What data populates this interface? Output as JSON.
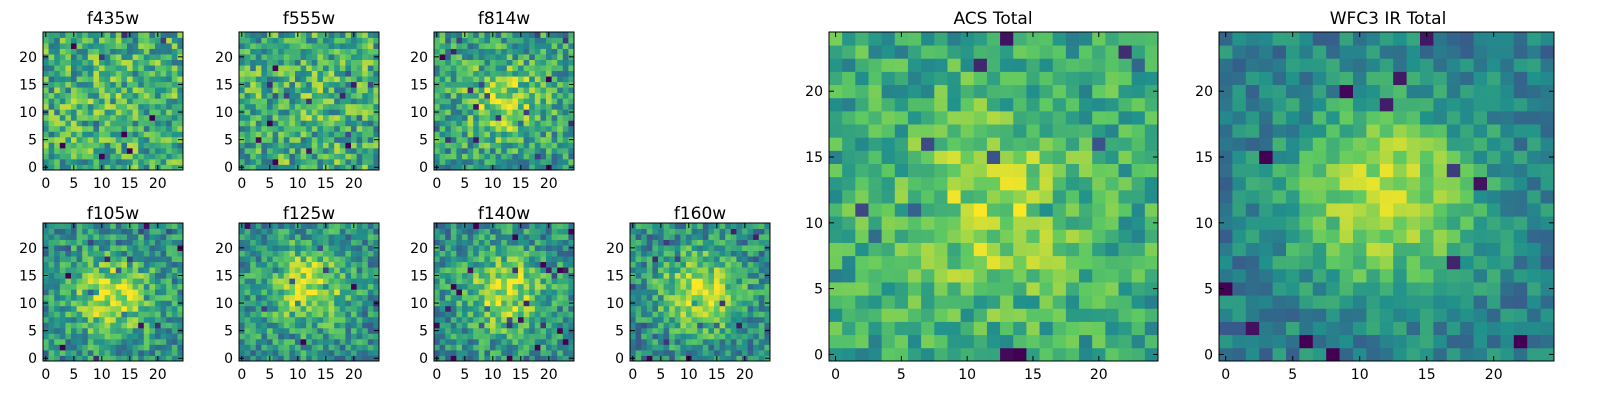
{
  "figure": {
    "colormap": "viridis",
    "colormap_stops": [
      "#440154",
      "#3b528b",
      "#21918c",
      "#5ec962",
      "#fde725"
    ],
    "background": "#ffffff"
  },
  "chart_data": [
    {
      "type": "heatmap",
      "title": "f435w",
      "grid_size": 25,
      "xticks": [
        "0",
        "5",
        "10",
        "15",
        "20"
      ],
      "yticks": [
        "0",
        "5",
        "10",
        "15",
        "20"
      ],
      "xlim": [
        0,
        24
      ],
      "ylim": [
        0,
        24
      ],
      "peak_center": [
        12,
        12
      ],
      "peak_strength": 0.05,
      "noise": 0.55,
      "base": 0.62,
      "seed": 11,
      "grid": false
    },
    {
      "type": "heatmap",
      "title": "f555w",
      "grid_size": 25,
      "xticks": [
        "0",
        "5",
        "10",
        "15",
        "20"
      ],
      "yticks": [
        "0",
        "5",
        "10",
        "15",
        "20"
      ],
      "xlim": [
        0,
        24
      ],
      "ylim": [
        0,
        24
      ],
      "peak_center": [
        12,
        12
      ],
      "peak_strength": 0.05,
      "noise": 0.55,
      "base": 0.62,
      "seed": 23,
      "grid": false
    },
    {
      "type": "heatmap",
      "title": "f814w",
      "grid_size": 25,
      "xticks": [
        "0",
        "5",
        "10",
        "15",
        "20"
      ],
      "yticks": [
        "0",
        "5",
        "10",
        "15",
        "20"
      ],
      "xlim": [
        0,
        24
      ],
      "ylim": [
        0,
        24
      ],
      "peak_center": [
        12,
        12
      ],
      "peak_strength": 0.3,
      "noise": 0.5,
      "base": 0.55,
      "seed": 37,
      "grid": false
    },
    {
      "type": "heatmap",
      "title": "f105w",
      "grid_size": 25,
      "xticks": [
        "0",
        "5",
        "10",
        "15",
        "20"
      ],
      "yticks": [
        "0",
        "5",
        "10",
        "15",
        "20"
      ],
      "xlim": [
        0,
        24
      ],
      "ylim": [
        0,
        24
      ],
      "peak_center": [
        12,
        11
      ],
      "peak_strength": 0.4,
      "noise": 0.45,
      "base": 0.5,
      "seed": 41,
      "grid": false
    },
    {
      "type": "heatmap",
      "title": "f125w",
      "grid_size": 25,
      "xticks": [
        "0",
        "5",
        "10",
        "15",
        "20"
      ],
      "yticks": [
        "0",
        "5",
        "10",
        "15",
        "20"
      ],
      "xlim": [
        0,
        24
      ],
      "ylim": [
        0,
        24
      ],
      "peak_center": [
        12,
        13
      ],
      "peak_strength": 0.4,
      "noise": 0.45,
      "base": 0.5,
      "seed": 53,
      "grid": false
    },
    {
      "type": "heatmap",
      "title": "f140w",
      "grid_size": 25,
      "xticks": [
        "0",
        "5",
        "10",
        "15",
        "20"
      ],
      "yticks": [
        "0",
        "5",
        "10",
        "15",
        "20"
      ],
      "xlim": [
        0,
        24
      ],
      "ylim": [
        0,
        24
      ],
      "peak_center": [
        12,
        12
      ],
      "peak_strength": 0.4,
      "noise": 0.45,
      "base": 0.5,
      "seed": 67,
      "grid": false
    },
    {
      "type": "heatmap",
      "title": "f160w",
      "grid_size": 25,
      "xticks": [
        "0",
        "5",
        "10",
        "15",
        "20"
      ],
      "yticks": [
        "0",
        "5",
        "10",
        "15",
        "20"
      ],
      "xlim": [
        0,
        24
      ],
      "ylim": [
        0,
        24
      ],
      "peak_center": [
        12,
        12
      ],
      "peak_strength": 0.45,
      "noise": 0.45,
      "base": 0.48,
      "seed": 79,
      "grid": false
    },
    {
      "type": "heatmap",
      "title": "ACS Total",
      "grid_size": 25,
      "xticks": [
        "0",
        "5",
        "10",
        "15",
        "20"
      ],
      "yticks": [
        "0",
        "5",
        "10",
        "15",
        "20"
      ],
      "xlim": [
        0,
        24
      ],
      "ylim": [
        0,
        24
      ],
      "peak_center": [
        12,
        11
      ],
      "peak_strength": 0.25,
      "noise": 0.38,
      "base": 0.6,
      "seed": 97,
      "grid": false
    },
    {
      "type": "heatmap",
      "title": "WFC3 IR Total",
      "grid_size": 25,
      "xticks": [
        "0",
        "5",
        "10",
        "15",
        "20"
      ],
      "yticks": [
        "0",
        "5",
        "10",
        "15",
        "20"
      ],
      "xlim": [
        0,
        24
      ],
      "ylim": [
        0,
        24
      ],
      "peak_center": [
        12,
        12
      ],
      "peak_strength": 0.5,
      "noise": 0.3,
      "base": 0.42,
      "seed": 113,
      "grid": false
    }
  ]
}
